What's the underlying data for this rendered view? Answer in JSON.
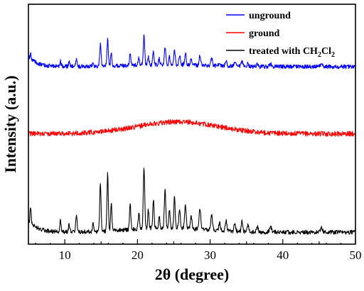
{
  "chart_data": {
    "type": "line",
    "xlabel": "2θ (degree)",
    "ylabel": "Intensity (a.u.)",
    "xlim": [
      5,
      50
    ],
    "xticks": [
      10,
      20,
      30,
      40,
      50
    ],
    "y_units": "arbitrary",
    "ylim": [
      0,
      100
    ],
    "grid": false,
    "legend_position": "top-right",
    "peaks": [
      {
        "x": 5.3,
        "h": 0.9,
        "w": 0.1
      },
      {
        "x": 9.4,
        "h": 0.65,
        "w": 0.12
      },
      {
        "x": 10.6,
        "h": 0.45,
        "w": 0.12
      },
      {
        "x": 11.6,
        "h": 0.95,
        "w": 0.14
      },
      {
        "x": 13.9,
        "h": 0.45,
        "w": 0.12
      },
      {
        "x": 14.9,
        "h": 2.6,
        "w": 0.13
      },
      {
        "x": 15.9,
        "h": 3.1,
        "w": 0.13
      },
      {
        "x": 16.4,
        "h": 1.6,
        "w": 0.12
      },
      {
        "x": 19.0,
        "h": 1.35,
        "w": 0.13
      },
      {
        "x": 20.2,
        "h": 0.85,
        "w": 0.13
      },
      {
        "x": 20.9,
        "h": 3.3,
        "w": 0.14
      },
      {
        "x": 21.5,
        "h": 1.0,
        "w": 0.12
      },
      {
        "x": 22.2,
        "h": 1.5,
        "w": 0.13
      },
      {
        "x": 23.0,
        "h": 0.7,
        "w": 0.12
      },
      {
        "x": 23.8,
        "h": 2.0,
        "w": 0.14
      },
      {
        "x": 24.4,
        "h": 1.0,
        "w": 0.13
      },
      {
        "x": 25.1,
        "h": 1.7,
        "w": 0.13
      },
      {
        "x": 25.8,
        "h": 1.1,
        "w": 0.14
      },
      {
        "x": 26.6,
        "h": 1.3,
        "w": 0.15
      },
      {
        "x": 27.4,
        "h": 0.7,
        "w": 0.15
      },
      {
        "x": 28.6,
        "h": 1.15,
        "w": 0.15
      },
      {
        "x": 30.2,
        "h": 0.85,
        "w": 0.16
      },
      {
        "x": 31.3,
        "h": 0.45,
        "w": 0.15
      },
      {
        "x": 32.2,
        "h": 0.55,
        "w": 0.15
      },
      {
        "x": 33.4,
        "h": 0.45,
        "w": 0.15
      },
      {
        "x": 34.4,
        "h": 0.55,
        "w": 0.15
      },
      {
        "x": 35.2,
        "h": 0.35,
        "w": 0.15
      },
      {
        "x": 36.5,
        "h": 0.3,
        "w": 0.16
      },
      {
        "x": 38.3,
        "h": 0.3,
        "w": 0.2
      },
      {
        "x": 45.3,
        "h": 0.25,
        "w": 0.2
      }
    ],
    "series": [
      {
        "name": "unground",
        "color": "#0000ff",
        "baseline": 74,
        "amplitude": 0.4,
        "broad_hump": 0,
        "decay": 4
      },
      {
        "name": "ground",
        "color": "#ff0000",
        "baseline": 46,
        "amplitude": 0,
        "broad_hump": 5,
        "decay": 0
      },
      {
        "name": "treated with CH2Cl2",
        "color": "#000000",
        "baseline": 5,
        "amplitude": 0.85,
        "broad_hump": 0,
        "decay": 5
      }
    ]
  },
  "legend": {
    "entries": [
      {
        "label": "unground",
        "color": "#0000ff"
      },
      {
        "label": "ground",
        "color": "#ff0000"
      },
      {
        "label_main": "treated with CH",
        "sub1": "2",
        "mid": "Cl",
        "sub2": "2",
        "color": "#000000"
      }
    ]
  }
}
